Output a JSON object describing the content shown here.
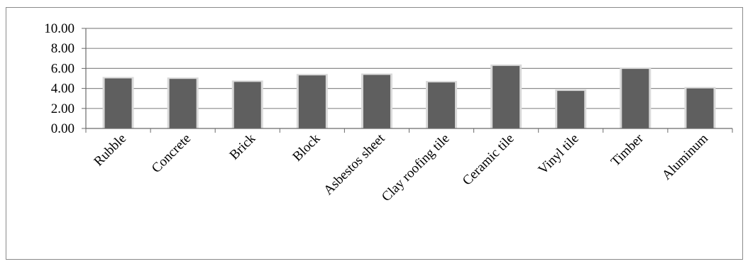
{
  "chart_data": {
    "type": "bar",
    "title": "",
    "xlabel": "",
    "ylabel": "",
    "categories": [
      "Rubble",
      "Concrete",
      "Brick",
      "Block",
      "Asbestos sheet",
      "Clay roofing tile",
      "Ceramic tile",
      "Vinyl tile",
      "Timber",
      "Aluminum"
    ],
    "values": [
      5.0,
      4.95,
      4.65,
      5.3,
      5.35,
      4.6,
      6.25,
      3.75,
      5.95,
      4.0
    ],
    "ylim": [
      0,
      10
    ],
    "yticks": [
      "0.00",
      "2.00",
      "4.00",
      "6.00",
      "8.00",
      "10.00"
    ],
    "grid": true,
    "legend": "none",
    "bar_color": "#5f5f5f",
    "bar_edge_color": "#d9d9d9",
    "grid_color": "#8c8c8c"
  }
}
